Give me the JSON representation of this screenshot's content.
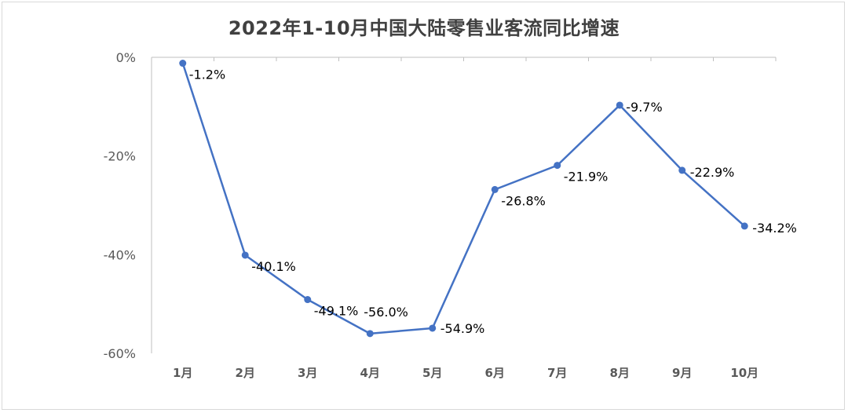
{
  "chart_data": {
    "type": "line",
    "title": "2022年1-10月中国大陆零售业客流同比增速",
    "xlabel": "",
    "ylabel": "",
    "categories": [
      "1月",
      "2月",
      "3月",
      "4月",
      "5月",
      "6月",
      "7月",
      "8月",
      "9月",
      "10月"
    ],
    "series": [
      {
        "values": [
          -1.2,
          -40.1,
          -49.1,
          -56.0,
          -54.9,
          -26.8,
          -21.9,
          -9.7,
          -22.9,
          -34.2
        ],
        "labels": [
          "-1.2%",
          "-40.1%",
          "-49.1%",
          "-56.0%",
          "-54.9%",
          "-26.8%",
          "-21.9%",
          "-9.7%",
          "-22.9%",
          "-34.2%"
        ],
        "color": "#4472c4"
      }
    ],
    "ylim": [
      -60,
      0
    ],
    "yticks": [
      0,
      -20,
      -40,
      -60
    ],
    "ytick_labels": [
      "0%",
      "-20%",
      "-40%",
      "-60%"
    ],
    "grid": false,
    "legend": "none"
  }
}
